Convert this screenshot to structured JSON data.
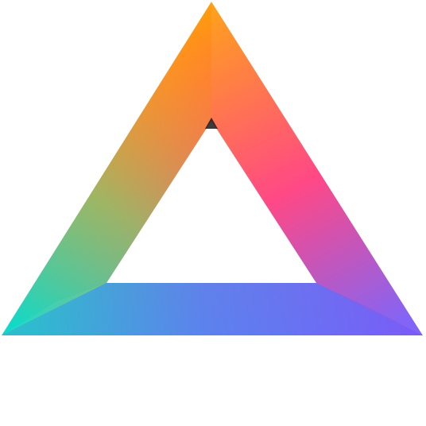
{
  "logo": {
    "icon": "triangle-logo-icon",
    "colors": {
      "top": "#ff9f0a",
      "left": "#12d9c7",
      "right": "#7b5cf6",
      "pink": "#ff3d7f",
      "blue": "#4a8cf7"
    }
  }
}
